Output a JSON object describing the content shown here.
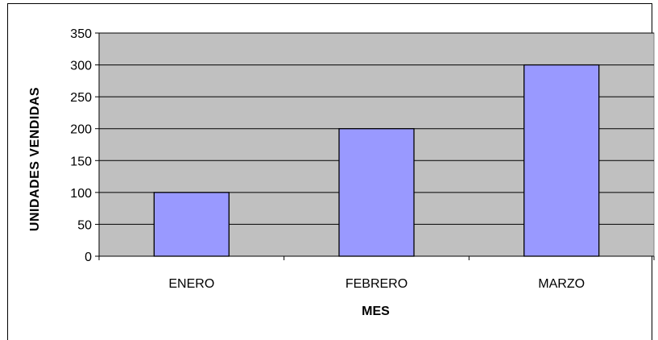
{
  "chart_data": {
    "type": "bar",
    "categories": [
      "ENERO",
      "FEBRERO",
      "MARZO"
    ],
    "values": [
      100,
      200,
      300
    ],
    "title": "",
    "xlabel": "MES",
    "ylabel": "UNIDADES VENDIDAS",
    "ylim": [
      0,
      350
    ],
    "yticks": [
      0,
      50,
      100,
      150,
      200,
      250,
      300,
      350
    ],
    "grid": true,
    "legend": "none",
    "colors": {
      "plot_background": "#c0c0c0",
      "bar_fill": "#9999ff",
      "bar_stroke": "#000000",
      "gridline": "#000000"
    }
  }
}
